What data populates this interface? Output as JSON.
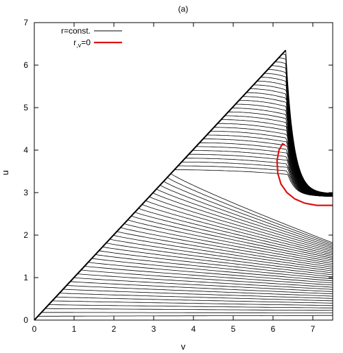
{
  "chart_data": {
    "type": "line",
    "title": "(a)",
    "xlabel": "v",
    "ylabel": "u",
    "xlim": [
      0,
      7.5
    ],
    "ylim": [
      0,
      7
    ],
    "x_ticks": [
      "0",
      "1",
      "2",
      "3",
      "4",
      "5",
      "6",
      "7"
    ],
    "y_ticks": [
      "0",
      "1",
      "2",
      "3",
      "4",
      "5",
      "6",
      "7"
    ],
    "grid": false,
    "legend_position": "top-left",
    "legend": [
      {
        "label": "r=const.",
        "color": "#000000"
      },
      {
        "label": "r,v=0",
        "label_main": "r",
        "label_sub": ",v",
        "label_rest": "=0",
        "color": "#dd1111"
      }
    ],
    "series": [
      {
        "name": "r=const.",
        "color": "#000000",
        "boundary": {
          "x": [
            0,
            6.32
          ],
          "y": [
            0,
            6.35
          ]
        },
        "apex": {
          "x": 6.32,
          "y": 6.35
        },
        "end_at_right": {
          "x": 7.5,
          "y": 2.8
        }
      },
      {
        "name": "r,v=0",
        "color": "#dd1111",
        "x": [
          6.3,
          6.24,
          6.15,
          6.1,
          6.12,
          6.2,
          6.35,
          6.55,
          6.8,
          7.1,
          7.5
        ],
        "y": [
          4.12,
          4.15,
          4.0,
          3.75,
          3.45,
          3.2,
          3.0,
          2.85,
          2.75,
          2.7,
          2.7
        ]
      }
    ]
  }
}
